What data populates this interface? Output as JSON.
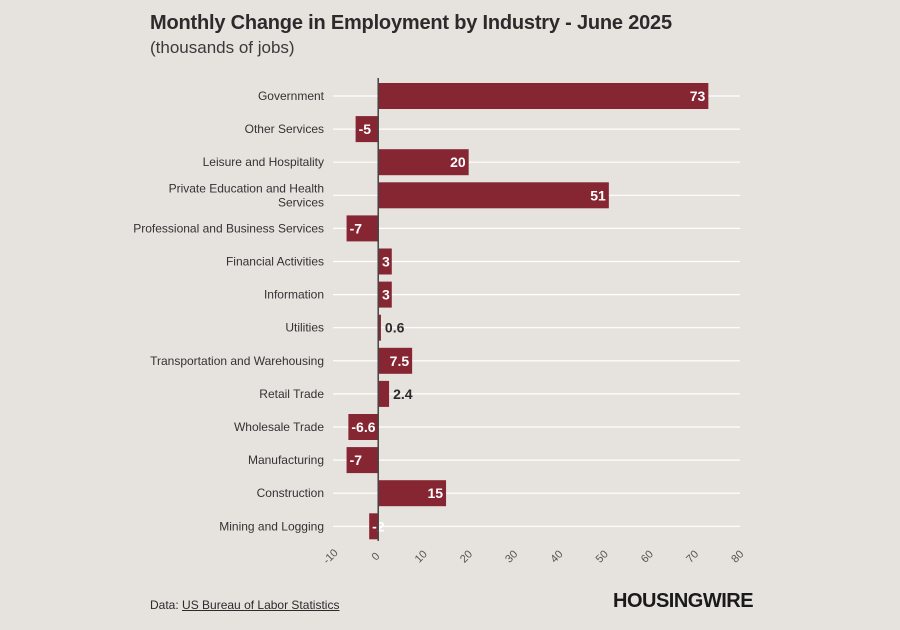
{
  "title": "Monthly Change in Employment by Industry - June 2025",
  "subtitle": "(thousands of jobs)",
  "source_label": "Data:",
  "source_link": "US Bureau of Labor Statistics",
  "logo": "HOUSINGWIRE",
  "colors": {
    "bar": "#862633",
    "background": "#e6e2de",
    "grid": "#ffffff"
  },
  "chart_data": {
    "type": "bar",
    "orientation": "horizontal",
    "categories": [
      "Government",
      "Other Services",
      "Leisure and Hospitality",
      "Private Education and Health Services",
      "Professional and Business Services",
      "Financial Activities",
      "Information",
      "Utilities",
      "Transportation and Warehousing",
      "Retail Trade",
      "Wholesale Trade",
      "Manufacturing",
      "Construction",
      "Mining and Logging"
    ],
    "values": [
      73,
      -5,
      20,
      51,
      -7,
      3,
      3,
      0.6,
      7.5,
      2.4,
      -6.6,
      -7,
      15,
      -2
    ],
    "xlim": [
      -10,
      80
    ],
    "xticks": [
      -10,
      0,
      10,
      20,
      30,
      40,
      50,
      60,
      70,
      80
    ],
    "xlabel": "",
    "ylabel": ""
  }
}
